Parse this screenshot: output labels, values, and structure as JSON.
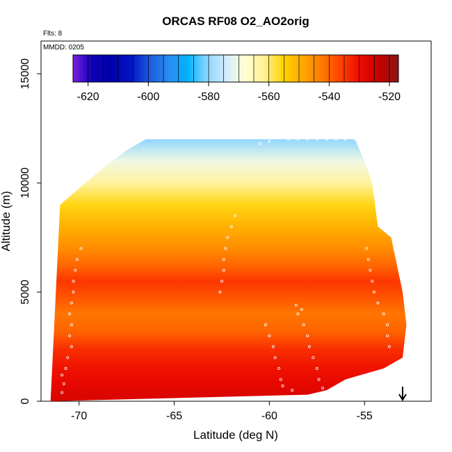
{
  "chart_data": {
    "type": "heatmap",
    "title": "ORCAS RF08 O2_AO2orig",
    "annotations": {
      "flights": "Flts: 8",
      "date": "MMDD: 0205"
    },
    "xlabel": "Latitude (deg N)",
    "ylabel": "Altitude (m)",
    "xlim": [
      -72.0,
      -51.5
    ],
    "ylim": [
      0,
      16500
    ],
    "x_ticks": [
      -70,
      -65,
      -60,
      -55
    ],
    "x_tick_labels": [
      "-70",
      "-65",
      "-60",
      "-55"
    ],
    "y_ticks": [
      0,
      5000,
      10000,
      15000
    ],
    "y_tick_labels": [
      "0",
      "5000",
      "10000",
      "15000"
    ],
    "colorbar": {
      "range": [
        -625,
        -517
      ],
      "ticks": [
        -620,
        -600,
        -580,
        -560,
        -540,
        -520
      ],
      "tick_labels": [
        "-620",
        "-600",
        "-580",
        "-560",
        "-540",
        "-520"
      ],
      "colors": [
        "#7b1fe0",
        "#1000b8",
        "#0000a8",
        "#0014c8",
        "#1c5adc",
        "#2a8cf0",
        "#00b4ff",
        "#8cd4ff",
        "#d4ecff",
        "#fffed4",
        "#fff090",
        "#ffd200",
        "#ffa800",
        "#ff7a00",
        "#ff4000",
        "#ec0a00",
        "#c40000",
        "#8c1616"
      ]
    },
    "field": {
      "top_boundary": [
        [
          -71.0,
          9000
        ],
        [
          -69.0,
          10500
        ],
        [
          -67.5,
          11500
        ],
        [
          -66.5,
          12000
        ],
        [
          -60.0,
          12000
        ],
        [
          -55.5,
          12000
        ],
        [
          -55.0,
          11000
        ],
        [
          -54.6,
          10000
        ],
        [
          -54.3,
          8000
        ],
        [
          -53.6,
          7500
        ],
        [
          -53.0,
          5000
        ],
        [
          -52.8,
          3500
        ],
        [
          -53.0,
          2000
        ],
        [
          -54.0,
          1500
        ],
        [
          -56.0,
          1000
        ],
        [
          -57.0,
          500
        ],
        [
          -58.0,
          300
        ]
      ],
      "bottom_boundary": [
        [
          -71.5,
          0
        ],
        [
          -58.0,
          300
        ]
      ],
      "profile": [
        {
          "alt": 250,
          "value": -527
        },
        {
          "alt": 900,
          "value": -529
        },
        {
          "alt": 1600,
          "value": -531
        },
        {
          "alt": 2400,
          "value": -534
        },
        {
          "alt": 3200,
          "value": -540
        },
        {
          "alt": 4000,
          "value": -542
        },
        {
          "alt": 4800,
          "value": -538
        },
        {
          "alt": 5500,
          "value": -535
        },
        {
          "alt": 6200,
          "value": -540
        },
        {
          "alt": 7000,
          "value": -545
        },
        {
          "alt": 8000,
          "value": -550
        },
        {
          "alt": 9000,
          "value": -556
        },
        {
          "alt": 10000,
          "value": -563
        },
        {
          "alt": 11000,
          "value": -570
        },
        {
          "alt": 12000,
          "value": -580
        }
      ]
    },
    "flight_track_points": [
      [
        -70.9,
        400
      ],
      [
        -70.8,
        800
      ],
      [
        -70.9,
        1200
      ],
      [
        -70.7,
        1500
      ],
      [
        -70.6,
        2000
      ],
      [
        -70.4,
        2500
      ],
      [
        -70.5,
        3000
      ],
      [
        -70.4,
        3500
      ],
      [
        -70.5,
        4000
      ],
      [
        -70.4,
        4500
      ],
      [
        -70.3,
        5000
      ],
      [
        -70.3,
        5500
      ],
      [
        -70.2,
        6000
      ],
      [
        -70.1,
        6500
      ],
      [
        -69.9,
        7000
      ],
      [
        -61.8,
        8500
      ],
      [
        -62.0,
        8000
      ],
      [
        -62.2,
        7500
      ],
      [
        -62.3,
        7000
      ],
      [
        -62.4,
        6500
      ],
      [
        -62.4,
        6000
      ],
      [
        -62.5,
        5500
      ],
      [
        -62.6,
        5000
      ],
      [
        -60.2,
        3500
      ],
      [
        -60.0,
        3000
      ],
      [
        -59.8,
        2500
      ],
      [
        -59.7,
        2000
      ],
      [
        -59.5,
        1500
      ],
      [
        -59.4,
        1000
      ],
      [
        -59.3,
        700
      ],
      [
        -58.8,
        500
      ],
      [
        -58.5,
        4000
      ],
      [
        -58.2,
        3500
      ],
      [
        -58.0,
        3000
      ],
      [
        -57.9,
        2500
      ],
      [
        -57.7,
        2000
      ],
      [
        -57.5,
        1500
      ],
      [
        -57.4,
        1000
      ],
      [
        -57.2,
        600
      ],
      [
        -58.6,
        4400
      ],
      [
        -58.3,
        4200
      ],
      [
        -59.0,
        12000
      ],
      [
        -58.5,
        12000
      ],
      [
        -58.0,
        12000
      ],
      [
        -57.5,
        12000
      ],
      [
        -57.0,
        12000
      ],
      [
        -56.5,
        12000
      ],
      [
        -56.0,
        12000
      ],
      [
        -55.5,
        12000
      ],
      [
        -60.5,
        11800
      ],
      [
        -60.0,
        11900
      ],
      [
        -54.9,
        7000
      ],
      [
        -54.8,
        6500
      ],
      [
        -54.7,
        6000
      ],
      [
        -54.6,
        5500
      ],
      [
        -54.5,
        5000
      ],
      [
        -54.3,
        4500
      ],
      [
        -54.0,
        4000
      ],
      [
        -53.8,
        3500
      ],
      [
        -53.8,
        3000
      ],
      [
        -53.7,
        2500
      ]
    ],
    "arrow": {
      "x": -53.0,
      "direction": "down"
    }
  }
}
